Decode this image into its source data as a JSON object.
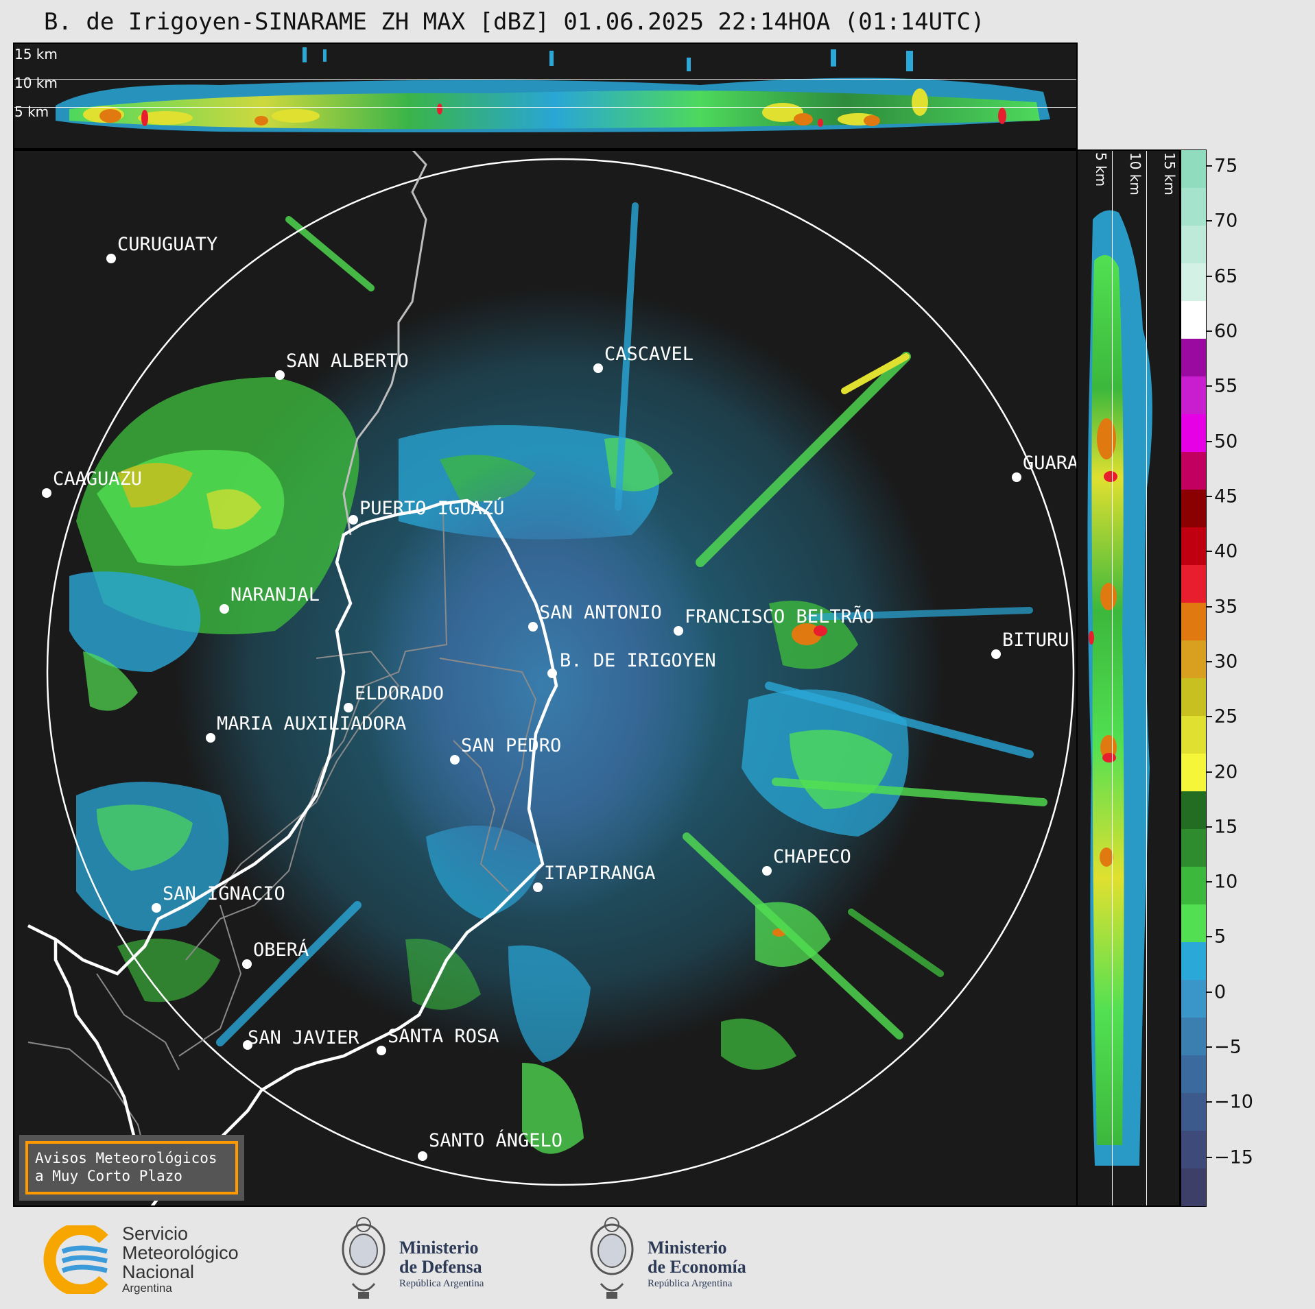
{
  "title": "B. de Irigoyen-SINARAME ZH MAX [dBZ] 01.06.2025 22:14HOA (01:14UTC)",
  "top_panel": {
    "altitude_labels": [
      "15 km",
      "10 km",
      "5 km"
    ]
  },
  "side_panel": {
    "altitude_labels": [
      "5 km",
      "10 km",
      "15 km"
    ]
  },
  "colorbar": {
    "unit": "dBZ",
    "ticks": [
      "75",
      "70",
      "65",
      "60",
      "55",
      "50",
      "45",
      "40",
      "35",
      "30",
      "25",
      "20",
      "15",
      "10",
      "5",
      "0",
      "−5",
      "−10",
      "−15"
    ],
    "tick_values": [
      75,
      70,
      65,
      60,
      55,
      50,
      45,
      40,
      35,
      30,
      25,
      20,
      15,
      10,
      5,
      0,
      -5,
      -10,
      -15
    ],
    "range": [
      -19.5,
      76.5
    ],
    "colors": [
      "#8fdcbf",
      "#a6e3cc",
      "#bdead9",
      "#d3f1e5",
      "#ffffff",
      "#9a0aa0",
      "#c81ecf",
      "#e600e6",
      "#c10060",
      "#8b0000",
      "#c00010",
      "#e81e2e",
      "#e07a10",
      "#d9a020",
      "#c8c020",
      "#e0e030",
      "#f5f53a",
      "#226d22",
      "#2e8b2e",
      "#3cb83c",
      "#52e052",
      "#2aa8d8",
      "#3a95c8",
      "#3a7fb0",
      "#3b6a9e",
      "#3d5a8c",
      "#3e4b7a",
      "#3d3f68"
    ]
  },
  "map": {
    "range_ring": "240 km",
    "cities": [
      {
        "name": "CURUGUATY"
      },
      {
        "name": "SAN ALBERTO"
      },
      {
        "name": "CASCAVEL"
      },
      {
        "name": "CAAGUAZU"
      },
      {
        "name": "GUARA"
      },
      {
        "name": "PUERTO IGUAZÚ"
      },
      {
        "name": "NARANJAL"
      },
      {
        "name": "SAN ANTONIO"
      },
      {
        "name": "FRANCISCO BELTRÃO"
      },
      {
        "name": "BITURU"
      },
      {
        "name": "B. DE IRIGOYEN"
      },
      {
        "name": "ELDORADO"
      },
      {
        "name": "MARIA AUXILIADORA"
      },
      {
        "name": "SAN PEDRO"
      },
      {
        "name": "CHAPECO"
      },
      {
        "name": "ITAPIRANGA"
      },
      {
        "name": "SAN IGNACIO"
      },
      {
        "name": "OBERÁ"
      },
      {
        "name": "SAN JAVIER"
      },
      {
        "name": "SANTA ROSA"
      },
      {
        "name": "SANTO ÁNGELO"
      }
    ]
  },
  "avisos": {
    "line1": "Avisos Meteorológicos",
    "line2": "a Muy Corto Plazo"
  },
  "footer": {
    "smn": {
      "line1": "Servicio",
      "line2": "Meteorológico",
      "line3": "Nacional",
      "line4": "Argentina"
    },
    "defensa": {
      "line1": "Ministerio",
      "line2": "de Defensa",
      "line3": "República Argentina"
    },
    "economia": {
      "line1": "Ministerio",
      "line2": "de Economía",
      "line3": "República Argentina"
    }
  }
}
